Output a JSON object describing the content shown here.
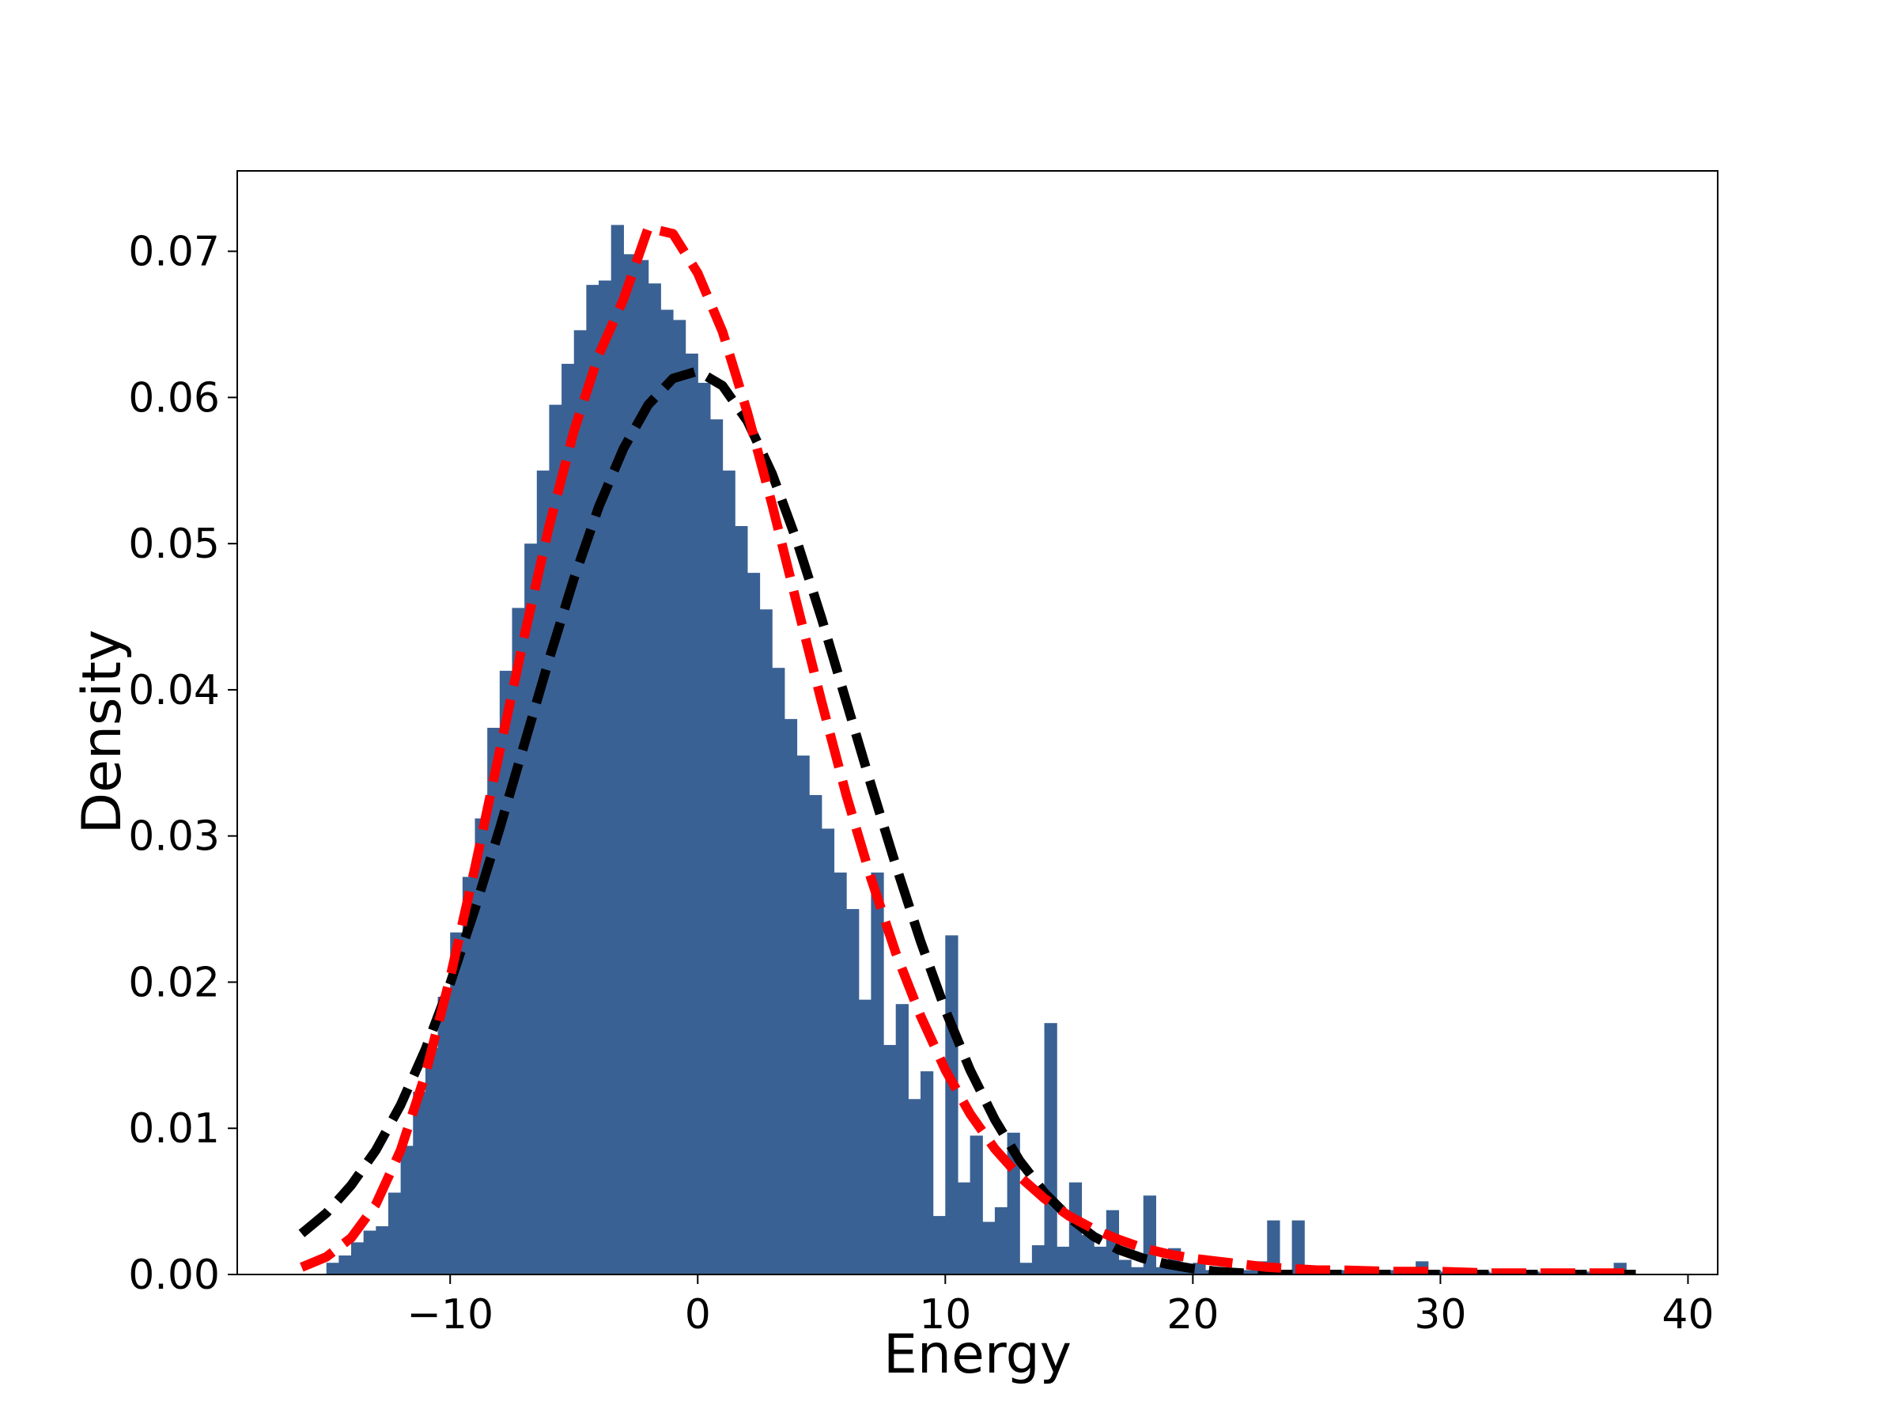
{
  "chart_data": {
    "type": "histogram",
    "xlabel": "Energy",
    "ylabel": "Density",
    "xlim": [
      -18.6,
      41.2
    ],
    "ylim": [
      0,
      0.0755
    ],
    "xticks": [
      -10,
      0,
      10,
      20,
      30,
      40
    ],
    "xtick_labels": [
      "−10",
      "0",
      "10",
      "20",
      "30",
      "40"
    ],
    "yticks": [
      0.0,
      0.01,
      0.02,
      0.03,
      0.04,
      0.05,
      0.06,
      0.07
    ],
    "ytick_labels": [
      "0.00",
      "0.01",
      "0.02",
      "0.03",
      "0.04",
      "0.05",
      "0.06",
      "0.07"
    ],
    "grid": false,
    "legend": false,
    "bar_color": "#3a6194",
    "histogram": {
      "bin_width": 0.5,
      "bin_starts": [
        -15.0,
        -14.5,
        -14.0,
        -13.5,
        -13.0,
        -12.5,
        -12.0,
        -11.5,
        -11.0,
        -10.5,
        -10.0,
        -9.5,
        -9.0,
        -8.5,
        -8.0,
        -7.5,
        -7.0,
        -6.5,
        -6.0,
        -5.5,
        -5.0,
        -4.5,
        -4.0,
        -3.5,
        -3.0,
        -2.5,
        -2.0,
        -1.5,
        -1.0,
        -0.5,
        0.0,
        0.5,
        1.0,
        1.5,
        2.0,
        2.5,
        3.0,
        3.5,
        4.0,
        4.5,
        5.0,
        5.5,
        6.0,
        6.5,
        7.0,
        7.5,
        8.0,
        8.5,
        9.0,
        9.5,
        10.0,
        10.5,
        11.0,
        11.5,
        12.0,
        12.5,
        13.0,
        13.5,
        14.0,
        14.5,
        15.0,
        15.5,
        16.0,
        16.5,
        17.0,
        17.5,
        18.0,
        18.5,
        19.0,
        19.5,
        20.0,
        20.5,
        21.0,
        21.5,
        22.0,
        22.5,
        23.0,
        23.5,
        24.0,
        24.5,
        25.0,
        25.5,
        26.0,
        26.5,
        27.0,
        27.5,
        28.0,
        28.5,
        29.0,
        29.5,
        30.0,
        30.5,
        31.0,
        31.5,
        32.0,
        32.5,
        33.0,
        33.5,
        34.0,
        34.5,
        35.0,
        35.5,
        36.0,
        36.5,
        37.0,
        37.5,
        38.0
      ],
      "density": [
        0.0008,
        0.0013,
        0.0022,
        0.003,
        0.0033,
        0.0056,
        0.0088,
        0.0125,
        0.0155,
        0.019,
        0.0234,
        0.0272,
        0.0312,
        0.0374,
        0.0413,
        0.0456,
        0.05,
        0.055,
        0.0595,
        0.0623,
        0.0646,
        0.0677,
        0.068,
        0.0718,
        0.0698,
        0.0694,
        0.0678,
        0.066,
        0.0653,
        0.063,
        0.061,
        0.0585,
        0.055,
        0.0512,
        0.048,
        0.0455,
        0.0415,
        0.038,
        0.0355,
        0.0328,
        0.0305,
        0.0275,
        0.025,
        0.0188,
        0.0275,
        0.0157,
        0.0185,
        0.012,
        0.0139,
        0.004,
        0.0232,
        0.0063,
        0.0095,
        0.0036,
        0.0046,
        0.0097,
        0.0008,
        0.002,
        0.0172,
        0.0019,
        0.0063,
        0.0027,
        0.0019,
        0.0044,
        0.001,
        0.0005,
        0.0054,
        0.0005,
        0.0018,
        0.0004,
        0.0008,
        0.0003,
        0.0003,
        0.0002,
        0.0003,
        0.0009,
        0.0037,
        0.0003,
        0.0037,
        0.0003,
        0.0005,
        0.0003,
        0.0003,
        0.0004,
        0.0003,
        0.0002,
        0.0003,
        0.0003,
        0.0009,
        0.0003,
        0.0002,
        0.0003,
        0.0003,
        0.0002,
        0.0001,
        0.0002,
        0.0001,
        0.0002,
        0.0001,
        0.0002,
        0.0001,
        0.0002,
        0.0001,
        0.0002,
        0.0008
      ]
    },
    "curves": [
      {
        "style": "dashed",
        "color": "#000000",
        "x": [
          -16,
          -15,
          -14,
          -13,
          -12,
          -11,
          -10,
          -9,
          -8,
          -7,
          -6,
          -5,
          -4,
          -3,
          -2,
          -1,
          0,
          1,
          2,
          3,
          4,
          5,
          6,
          7,
          8,
          9,
          10,
          11,
          12,
          13,
          14,
          15,
          16,
          17,
          18,
          19,
          20,
          21,
          22,
          23,
          25,
          28,
          32,
          36,
          38
        ],
        "y": [
          0.0028,
          0.0042,
          0.0061,
          0.0085,
          0.0116,
          0.0154,
          0.0199,
          0.025,
          0.0305,
          0.0363,
          0.0421,
          0.0476,
          0.0525,
          0.0565,
          0.0595,
          0.0613,
          0.0618,
          0.0608,
          0.0584,
          0.0548,
          0.0502,
          0.0449,
          0.0392,
          0.0335,
          0.028,
          0.0228,
          0.0181,
          0.014,
          0.0106,
          0.0078,
          0.0056,
          0.0039,
          0.0026,
          0.0017,
          0.0011,
          0.0007,
          0.0004,
          0.0002,
          0.0001,
          0.0,
          0.0,
          0.0,
          0.0,
          0.0,
          0.0
        ]
      },
      {
        "style": "dashed",
        "color": "#ff0000",
        "x": [
          -16,
          -15,
          -14,
          -13,
          -12,
          -11,
          -10,
          -9,
          -8,
          -7,
          -6,
          -5,
          -4,
          -3,
          -2,
          -1,
          0,
          1,
          2,
          3,
          4,
          5,
          6,
          7,
          8,
          9,
          10,
          11,
          12,
          13,
          14,
          15,
          16,
          17,
          18,
          19,
          20,
          21,
          22,
          23,
          24,
          25,
          26,
          28,
          30,
          32,
          34,
          36,
          38
        ],
        "y": [
          0.0005,
          0.0012,
          0.0025,
          0.0048,
          0.0085,
          0.0137,
          0.0203,
          0.0278,
          0.0358,
          0.0437,
          0.0512,
          0.0577,
          0.0629,
          0.0667,
          0.0716,
          0.0712,
          0.0685,
          0.0645,
          0.059,
          0.0527,
          0.0459,
          0.0392,
          0.0328,
          0.0271,
          0.022,
          0.0177,
          0.014,
          0.011,
          0.0086,
          0.0067,
          0.0052,
          0.004,
          0.0031,
          0.0024,
          0.0018,
          0.0014,
          0.0011,
          0.0009,
          0.0007,
          0.0005,
          0.0004,
          0.0003,
          0.0003,
          0.0002,
          0.0002,
          0.0001,
          0.0001,
          0.0001,
          0.0001
        ]
      }
    ]
  }
}
